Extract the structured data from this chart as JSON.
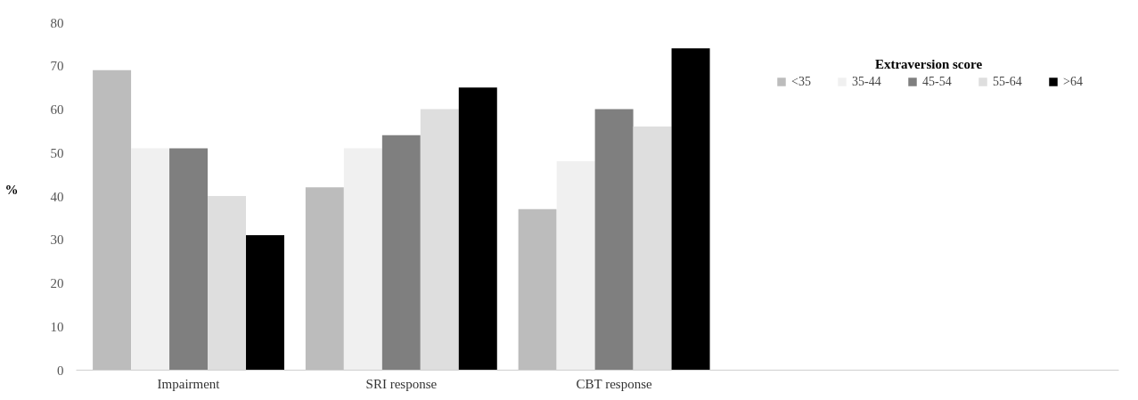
{
  "chart_data": {
    "type": "bar",
    "ylabel": "%",
    "legend_title": "Extraversion score",
    "legend": "top right",
    "grid": false,
    "categories": [
      "Impairment",
      "SRI response",
      "CBT response"
    ],
    "series": [
      {
        "name": "<35",
        "color": "#bcbcbc",
        "values": [
          69,
          42,
          37
        ]
      },
      {
        "name": "35-44",
        "color": "#f0f0f0",
        "values": [
          51,
          51,
          48
        ]
      },
      {
        "name": "45-54",
        "color": "#7f7f7f",
        "values": [
          51,
          54,
          60
        ]
      },
      {
        "name": "55-64",
        "color": "#dedede",
        "values": [
          40,
          60,
          56
        ]
      },
      {
        "name": ">64",
        "color": "#000000",
        "values": [
          31,
          65,
          74
        ]
      }
    ],
    "ylim": [
      0,
      80
    ],
    "yticks": [
      0,
      10,
      20,
      30,
      40,
      50,
      60,
      70,
      80
    ]
  }
}
